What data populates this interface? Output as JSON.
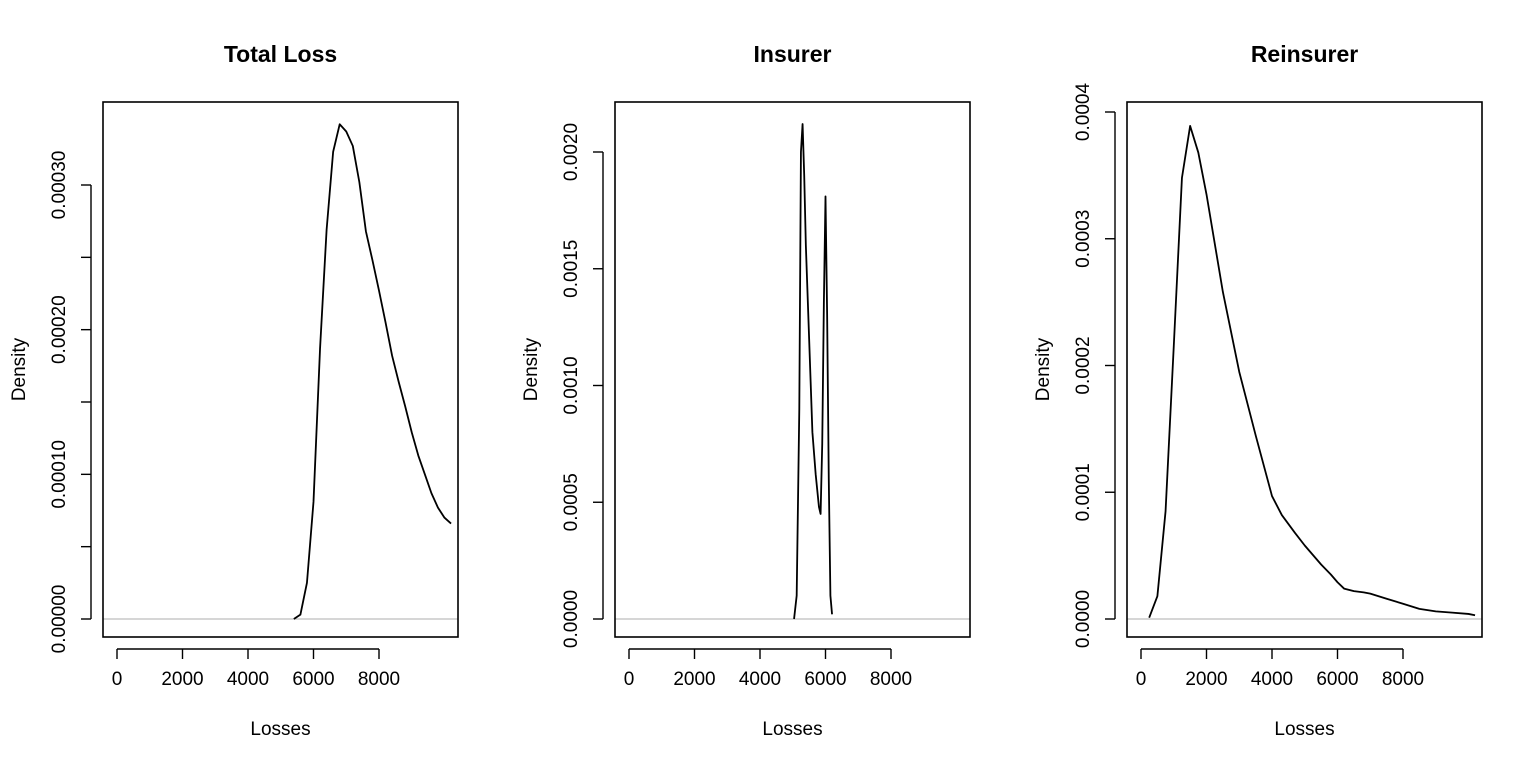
{
  "chart_data": [
    {
      "type": "line",
      "title": "Total Loss",
      "xlabel": "Losses",
      "ylabel": "Density",
      "xlim": [
        0,
        10200
      ],
      "ylim": [
        0,
        0.00034
      ],
      "x_ticks": [
        0,
        2000,
        4000,
        6000,
        8000
      ],
      "x_tick_labels": [
        "0",
        "2000",
        "4000",
        "6000",
        "8000"
      ],
      "y_ticks": [
        0,
        5e-05,
        0.0001,
        0.00015,
        0.0002,
        0.00025,
        0.0003
      ],
      "y_tick_labels": [
        "0.00000",
        "",
        "0.00010",
        "",
        "0.00020",
        "",
        "0.00030"
      ],
      "baseline": 0,
      "baseline_color": "#bebebe",
      "line_color": "#000000",
      "grid": false,
      "x": [
        5400,
        5600,
        5800,
        6000,
        6200,
        6400,
        6600,
        6800,
        7000,
        7200,
        7400,
        7600,
        7800,
        8000,
        8200,
        8400,
        8600,
        8800,
        9000,
        9200,
        9400,
        9600,
        9800,
        10000,
        10200
      ],
      "y": [
        0.0,
        3e-06,
        2.5e-05,
        8.1e-05,
        0.000187,
        0.000269,
        0.000323,
        0.000342,
        0.000337,
        0.000327,
        0.000302,
        0.000268,
        0.000248,
        0.000227,
        0.000205,
        0.000182,
        0.000164,
        0.000147,
        0.000129,
        0.000113,
        0.0001,
        8.7e-05,
        7.7e-05,
        7e-05,
        6.6e-05
      ]
    },
    {
      "type": "line",
      "title": "Insurer",
      "xlabel": "Losses",
      "ylabel": "Density",
      "xlim": [
        0,
        10200
      ],
      "ylim": [
        0,
        0.0021
      ],
      "x_ticks": [
        0,
        2000,
        4000,
        6000,
        8000
      ],
      "x_tick_labels": [
        "0",
        "2000",
        "4000",
        "6000",
        "8000"
      ],
      "y_ticks": [
        0,
        0.0005,
        0.001,
        0.0015,
        0.002
      ],
      "y_tick_labels": [
        "0.0000",
        "0.0005",
        "0.0010",
        "0.0015",
        "0.0020"
      ],
      "baseline": 0,
      "baseline_color": "#bebebe",
      "line_color": "#000000",
      "grid": false,
      "x": [
        5040,
        5120,
        5200,
        5250,
        5300,
        5350,
        5400,
        5500,
        5600,
        5700,
        5800,
        5850,
        5900,
        5950,
        6000,
        6050,
        6100,
        6150,
        6200
      ],
      "y": [
        0.0,
        0.0001,
        0.0009,
        0.002,
        0.00212,
        0.0019,
        0.0016,
        0.0012,
        0.0008,
        0.00062,
        0.00048,
        0.00045,
        0.00075,
        0.00135,
        0.00181,
        0.0013,
        0.0006,
        0.0001,
        2e-05
      ]
    },
    {
      "type": "line",
      "title": "Reinsurer",
      "xlabel": "Losses",
      "ylabel": "Density",
      "xlim": [
        0,
        10200
      ],
      "ylim": [
        0,
        0.00039
      ],
      "x_ticks": [
        0,
        2000,
        4000,
        6000,
        8000
      ],
      "x_tick_labels": [
        "0",
        "2000",
        "4000",
        "6000",
        "8000"
      ],
      "y_ticks": [
        0,
        0.0001,
        0.0002,
        0.0003,
        0.0004
      ],
      "y_tick_labels": [
        "0.0000",
        "0.0001",
        "0.0002",
        "0.0003",
        "0.0004"
      ],
      "baseline": 0,
      "baseline_color": "#bebebe",
      "line_color": "#000000",
      "grid": false,
      "x": [
        250,
        500,
        750,
        1000,
        1250,
        1500,
        1750,
        2000,
        2500,
        3000,
        3500,
        4000,
        4300,
        4700,
        5000,
        5500,
        5800,
        6000,
        6200,
        6500,
        6800,
        7000,
        7500,
        8000,
        8500,
        9000,
        9500,
        10000,
        10200
      ],
      "y": [
        1e-06,
        1.8e-05,
        8.5e-05,
        0.000215,
        0.000348,
        0.000389,
        0.000368,
        0.000335,
        0.000258,
        0.000195,
        0.000145,
        9.7e-05,
        8.2e-05,
        6.8e-05,
        5.8e-05,
        4.3e-05,
        3.5e-05,
        2.9e-05,
        2.4e-05,
        2.2e-05,
        2.1e-05,
        2e-05,
        1.6e-05,
        1.2e-05,
        8e-06,
        6e-06,
        5e-06,
        4e-06,
        3e-06
      ]
    }
  ]
}
